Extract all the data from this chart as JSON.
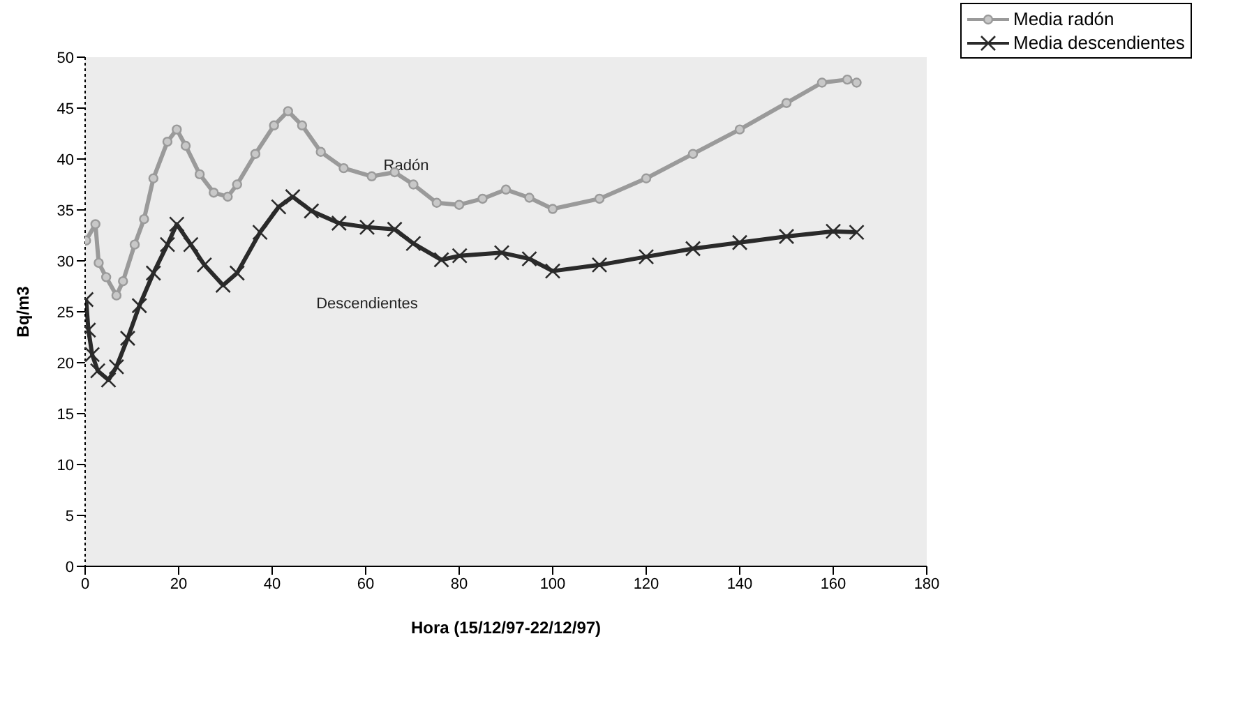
{
  "chart_data": {
    "type": "line",
    "xlabel": "Hora (15/12/97-22/12/97)",
    "ylabel": "Bq/m3",
    "xlim": [
      0,
      180
    ],
    "xticks": [
      0,
      20,
      40,
      60,
      80,
      100,
      120,
      140,
      160,
      180
    ],
    "ylim": [
      0,
      50
    ],
    "yticks": [
      0,
      5,
      10,
      15,
      20,
      25,
      30,
      35,
      40,
      45,
      50
    ],
    "grid": false,
    "legend": "top right",
    "annotations": [
      "Radón",
      "Descendientes"
    ],
    "series": [
      {
        "name": "Media radón",
        "color": "#9a9a9a",
        "marker": "circle",
        "x": [
          0.2,
          2.2,
          2.9,
          4.5,
          6.7,
          8.1,
          10.6,
          12.6,
          14.6,
          17.6,
          19.6,
          21.5,
          24.5,
          27.5,
          30.5,
          32.5,
          36.4,
          40.4,
          43.4,
          46.4,
          50.4,
          55.3,
          61.3,
          66.2,
          70.2,
          75.2,
          80,
          85,
          90,
          95,
          100,
          110,
          120,
          130,
          140,
          150,
          157.6,
          163,
          165
        ],
        "values": [
          32.0,
          33.6,
          29.8,
          28.4,
          26.6,
          28.0,
          31.6,
          34.1,
          38.1,
          41.7,
          42.9,
          41.3,
          38.5,
          36.7,
          36.3,
          37.5,
          40.5,
          43.3,
          44.7,
          43.3,
          40.7,
          39.1,
          38.3,
          38.7,
          37.5,
          35.7,
          35.5,
          36.1,
          37.0,
          36.2,
          35.1,
          36.1,
          38.1,
          40.5,
          42.9,
          45.5,
          47.5,
          47.8,
          47.5
        ]
      },
      {
        "name": "Media descendientes",
        "color": "#2a2a2a",
        "marker": "cross",
        "x": [
          0.2,
          0.7,
          1.5,
          2.7,
          5,
          6.7,
          9.1,
          11.6,
          14.6,
          17.6,
          19.6,
          22.6,
          25.5,
          29.5,
          32.5,
          37.4,
          41.4,
          44.4,
          48.4,
          54.3,
          60.3,
          66.2,
          70.2,
          76.2,
          80.1,
          89.1,
          95,
          100,
          110,
          120,
          130,
          140,
          150,
          160,
          165
        ],
        "values": [
          26.2,
          23.2,
          20.8,
          19.2,
          18.3,
          19.6,
          22.4,
          25.6,
          28.8,
          31.6,
          33.6,
          31.6,
          29.6,
          27.6,
          28.8,
          32.8,
          35.3,
          36.3,
          34.9,
          33.7,
          33.3,
          33.1,
          31.7,
          30.1,
          30.5,
          30.8,
          30.2,
          29.0,
          29.6,
          30.4,
          31.2,
          31.8,
          32.4,
          32.9,
          32.8
        ]
      }
    ]
  }
}
